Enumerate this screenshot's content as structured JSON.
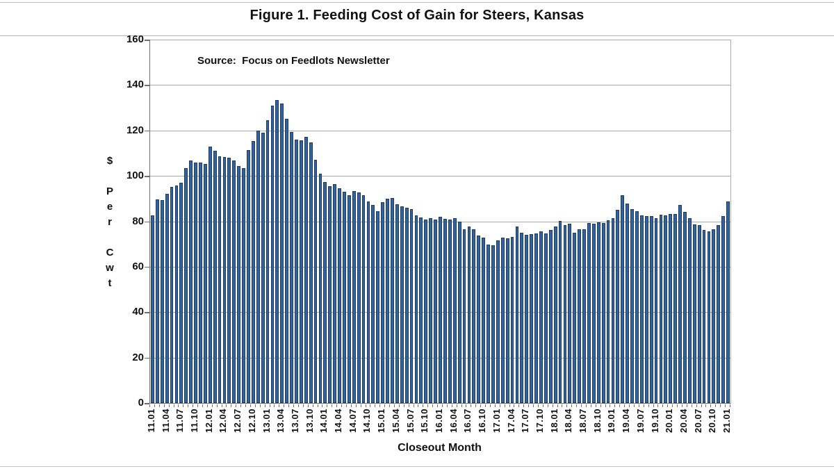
{
  "title": "Figure 1.  Feeding Cost of Gain for Steers, Kansas",
  "chart_data": {
    "type": "bar",
    "title": "Figure 1.  Feeding Cost of Gain for Steers, Kansas",
    "source": "Source:  Focus on Feedlots Newsletter",
    "xlabel": "Closeout Month",
    "ylabel": "$ Per Cwt",
    "ylabel_stacked": [
      "$",
      "",
      "P",
      "e",
      "r",
      "",
      "C",
      "w",
      "t"
    ],
    "ylim": [
      0,
      160
    ],
    "yticks": [
      0,
      20,
      40,
      60,
      80,
      100,
      120,
      140,
      160
    ],
    "xtick_label_every": 3,
    "grid": true,
    "legend": "none",
    "bar_color": "#33629c",
    "bar_border_color": "#1b3a66",
    "categories": [
      "11.01",
      "11.02",
      "11.03",
      "11.04",
      "11.05",
      "11.06",
      "11.07",
      "11.08",
      "11.09",
      "11.10",
      "11.11",
      "11.12",
      "12.01",
      "12.02",
      "12.03",
      "12.04",
      "12.05",
      "12.06",
      "12.07",
      "12.08",
      "12.09",
      "12.10",
      "12.11",
      "12.12",
      "13.01",
      "13.02",
      "13.03",
      "13.04",
      "13.05",
      "13.06",
      "13.07",
      "13.08",
      "13.09",
      "13.10",
      "13.11",
      "13.12",
      "14.01",
      "14.02",
      "14.03",
      "14.04",
      "14.05",
      "14.06",
      "14.07",
      "14.08",
      "14.09",
      "14.10",
      "14.11",
      "14.12",
      "15.01",
      "15.02",
      "15.03",
      "15.04",
      "15.05",
      "15.06",
      "15.07",
      "15.08",
      "15.09",
      "15.10",
      "15.11",
      "15.12",
      "16.01",
      "16.02",
      "16.03",
      "16.04",
      "16.05",
      "16.06",
      "16.07",
      "16.08",
      "16.09",
      "16.10",
      "16.11",
      "16.12",
      "17.01",
      "17.02",
      "17.03",
      "17.04",
      "17.05",
      "17.06",
      "17.07",
      "17.08",
      "17.09",
      "17.10",
      "17.11",
      "17.12",
      "18.01",
      "18.02",
      "18.03",
      "18.04",
      "18.05",
      "18.06",
      "18.07",
      "18.08",
      "18.09",
      "18.10",
      "18.11",
      "18.12",
      "19.01",
      "19.02",
      "19.03",
      "19.04",
      "19.05",
      "19.06",
      "19.07",
      "19.08",
      "19.09",
      "19.10",
      "19.11",
      "19.12",
      "20.01",
      "20.02",
      "20.03",
      "20.04",
      "20.05",
      "20.06",
      "20.07",
      "20.08",
      "20.09",
      "20.10",
      "20.11",
      "20.12",
      "21.01"
    ],
    "values": [
      82.5,
      89.5,
      89.3,
      92.0,
      95.0,
      95.9,
      96.9,
      103.5,
      106.8,
      106.0,
      106.0,
      105.3,
      113.0,
      111.2,
      108.6,
      108.2,
      108.0,
      106.7,
      104.2,
      103.5,
      111.3,
      115.2,
      119.8,
      118.9,
      124.5,
      131.0,
      133.5,
      131.8,
      125.2,
      119.4,
      116.0,
      115.5,
      117.3,
      114.6,
      107.1,
      100.9,
      97.4,
      95.5,
      96.3,
      94.6,
      93.1,
      91.5,
      93.3,
      92.8,
      91.5,
      88.7,
      87.3,
      84.4,
      88.4,
      89.8,
      90.1,
      87.6,
      86.7,
      85.9,
      85.4,
      82.7,
      81.6,
      80.9,
      81.3,
      80.9,
      81.9,
      81.0,
      80.8,
      81.4,
      79.7,
      76.5,
      77.6,
      76.4,
      73.8,
      72.7,
      69.8,
      69.3,
      71.6,
      72.7,
      72.5,
      73.1,
      77.7,
      74.9,
      73.9,
      74.4,
      74.6,
      75.5,
      74.5,
      76.2,
      77.6,
      80.1,
      78.4,
      78.8,
      75.1,
      76.5,
      76.6,
      79.3,
      78.8,
      79.5,
      79.2,
      80.4,
      81.3,
      85.1,
      91.5,
      87.9,
      85.4,
      84.3,
      82.6,
      82.2,
      82.2,
      81.3,
      82.8,
      82.6,
      83.3,
      83.3,
      87.2,
      84.0,
      81.4,
      78.6,
      78.4,
      76.1,
      75.7,
      76.5,
      78.2,
      82.2,
      88.6
    ]
  }
}
